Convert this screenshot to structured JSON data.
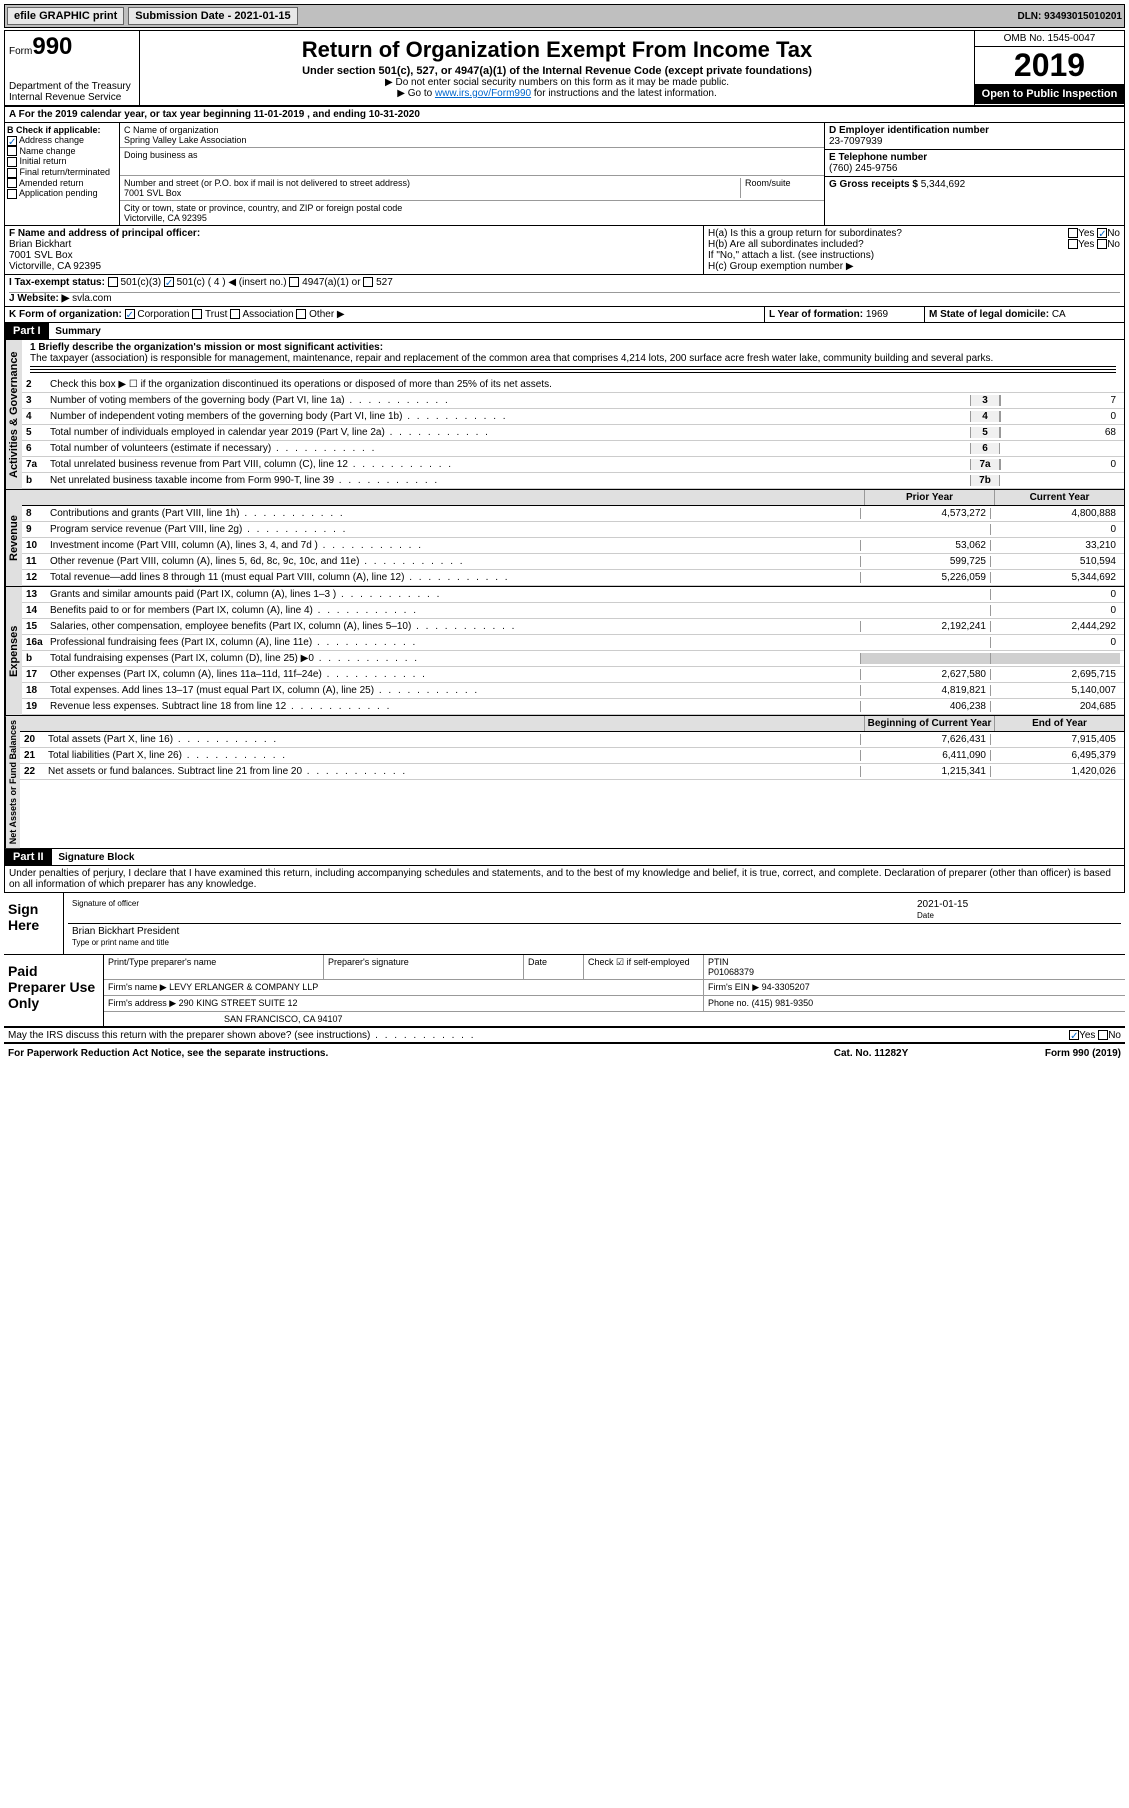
{
  "topbar": {
    "efile": "efile GRAPHIC print",
    "submission_label": "Submission Date - 2021-01-15",
    "dln": "DLN: 93493015010201"
  },
  "header": {
    "form_label": "Form",
    "form_number": "990",
    "dept": "Department of the Treasury",
    "irs": "Internal Revenue Service",
    "title": "Return of Organization Exempt From Income Tax",
    "subtitle": "Under section 501(c), 527, or 4947(a)(1) of the Internal Revenue Code (except private foundations)",
    "note1": "▶ Do not enter social security numbers on this form as it may be made public.",
    "note2_pre": "▶ Go to ",
    "note2_link": "www.irs.gov/Form990",
    "note2_post": " for instructions and the latest information.",
    "omb": "OMB No. 1545-0047",
    "year": "2019",
    "open": "Open to Public Inspection"
  },
  "line_a": "A For the 2019 calendar year, or tax year beginning 11-01-2019   , and ending 10-31-2020",
  "section_b": {
    "label": "B Check if applicable:",
    "items": [
      "Address change",
      "Name change",
      "Initial return",
      "Final return/terminated",
      "Amended return",
      "Application pending"
    ],
    "checked_idx": 0
  },
  "section_c": {
    "name_label": "C Name of organization",
    "name": "Spring Valley Lake Association",
    "dba_label": "Doing business as",
    "addr_label": "Number and street (or P.O. box if mail is not delivered to street address)",
    "room_label": "Room/suite",
    "addr": "7001 SVL Box",
    "city_label": "City or town, state or province, country, and ZIP or foreign postal code",
    "city": "Victorville, CA  92395"
  },
  "section_d": {
    "label": "D Employer identification number",
    "value": "23-7097939"
  },
  "section_e": {
    "label": "E Telephone number",
    "value": "(760) 245-9756"
  },
  "section_g": {
    "label": "G Gross receipts $",
    "value": "5,344,692"
  },
  "section_f": {
    "label": "F  Name and address of principal officer:",
    "name": "Brian Bickhart",
    "addr1": "7001 SVL Box",
    "addr2": "Victorville, CA  92395"
  },
  "section_h": {
    "a": "H(a)  Is this a group return for subordinates?",
    "a_yes": "Yes",
    "a_no": "No",
    "b": "H(b)  Are all subordinates included?",
    "b_yes": "Yes",
    "b_no": "No",
    "b_note": "If \"No,\" attach a list. (see instructions)",
    "c": "H(c)  Group exemption number ▶"
  },
  "section_i": {
    "label": "I  Tax-exempt status:",
    "opts": [
      "501(c)(3)",
      "501(c) ( 4 ) ◀ (insert no.)",
      "4947(a)(1) or",
      "527"
    ],
    "checked_idx": 1
  },
  "section_j": {
    "label": "J  Website: ▶",
    "value": "svla.com"
  },
  "section_k": {
    "label": "K Form of organization:",
    "opts": [
      "Corporation",
      "Trust",
      "Association",
      "Other ▶"
    ],
    "checked_idx": 0
  },
  "section_l": {
    "label": "L Year of formation:",
    "value": "1969"
  },
  "section_m": {
    "label": "M State of legal domicile:",
    "value": "CA"
  },
  "part1": {
    "header": "Part I",
    "title": "Summary",
    "tabs": [
      "Activities & Governance",
      "Revenue",
      "Expenses",
      "Net Assets or Fund Balances"
    ],
    "line1_label": "1  Briefly describe the organization's mission or most significant activities:",
    "line1_text": "The taxpayer (association) is responsible for management, maintenance, repair and replacement of the common area that comprises 4,214 lots, 200 surface acre fresh water lake, community building and several parks.",
    "line2": "Check this box ▶ ☐  if the organization discontinued its operations or disposed of more than 25% of its net assets.",
    "governance_lines": [
      {
        "n": "3",
        "d": "Number of voting members of the governing body (Part VI, line 1a)",
        "box": "3",
        "v": "7"
      },
      {
        "n": "4",
        "d": "Number of independent voting members of the governing body (Part VI, line 1b)",
        "box": "4",
        "v": "0"
      },
      {
        "n": "5",
        "d": "Total number of individuals employed in calendar year 2019 (Part V, line 2a)",
        "box": "5",
        "v": "68"
      },
      {
        "n": "6",
        "d": "Total number of volunteers (estimate if necessary)",
        "box": "6",
        "v": ""
      },
      {
        "n": "7a",
        "d": "Total unrelated business revenue from Part VIII, column (C), line 12",
        "box": "7a",
        "v": "0"
      },
      {
        "n": "b",
        "d": "Net unrelated business taxable income from Form 990-T, line 39",
        "box": "7b",
        "v": ""
      }
    ],
    "col_prior": "Prior Year",
    "col_current": "Current Year",
    "revenue_lines": [
      {
        "n": "8",
        "d": "Contributions and grants (Part VIII, line 1h)",
        "p": "4,573,272",
        "c": "4,800,888"
      },
      {
        "n": "9",
        "d": "Program service revenue (Part VIII, line 2g)",
        "p": "",
        "c": "0"
      },
      {
        "n": "10",
        "d": "Investment income (Part VIII, column (A), lines 3, 4, and 7d )",
        "p": "53,062",
        "c": "33,210"
      },
      {
        "n": "11",
        "d": "Other revenue (Part VIII, column (A), lines 5, 6d, 8c, 9c, 10c, and 11e)",
        "p": "599,725",
        "c": "510,594"
      },
      {
        "n": "12",
        "d": "Total revenue—add lines 8 through 11 (must equal Part VIII, column (A), line 12)",
        "p": "5,226,059",
        "c": "5,344,692"
      }
    ],
    "expense_lines": [
      {
        "n": "13",
        "d": "Grants and similar amounts paid (Part IX, column (A), lines 1–3 )",
        "p": "",
        "c": "0"
      },
      {
        "n": "14",
        "d": "Benefits paid to or for members (Part IX, column (A), line 4)",
        "p": "",
        "c": "0"
      },
      {
        "n": "15",
        "d": "Salaries, other compensation, employee benefits (Part IX, column (A), lines 5–10)",
        "p": "2,192,241",
        "c": "2,444,292"
      },
      {
        "n": "16a",
        "d": "Professional fundraising fees (Part IX, column (A), line 11e)",
        "p": "",
        "c": "0"
      },
      {
        "n": "b",
        "d": "Total fundraising expenses (Part IX, column (D), line 25) ▶0",
        "p": "gray",
        "c": "gray"
      },
      {
        "n": "17",
        "d": "Other expenses (Part IX, column (A), lines 11a–11d, 11f–24e)",
        "p": "2,627,580",
        "c": "2,695,715"
      },
      {
        "n": "18",
        "d": "Total expenses. Add lines 13–17 (must equal Part IX, column (A), line 25)",
        "p": "4,819,821",
        "c": "5,140,007"
      },
      {
        "n": "19",
        "d": "Revenue less expenses. Subtract line 18 from line 12",
        "p": "406,238",
        "c": "204,685"
      }
    ],
    "col_begin": "Beginning of Current Year",
    "col_end": "End of Year",
    "net_lines": [
      {
        "n": "20",
        "d": "Total assets (Part X, line 16)",
        "p": "7,626,431",
        "c": "7,915,405"
      },
      {
        "n": "21",
        "d": "Total liabilities (Part X, line 26)",
        "p": "6,411,090",
        "c": "6,495,379"
      },
      {
        "n": "22",
        "d": "Net assets or fund balances. Subtract line 21 from line 20",
        "p": "1,215,341",
        "c": "1,420,026"
      }
    ]
  },
  "part2": {
    "header": "Part II",
    "title": "Signature Block",
    "decl": "Under penalties of perjury, I declare that I have examined this return, including accompanying schedules and statements, and to the best of my knowledge and belief, it is true, correct, and complete. Declaration of preparer (other than officer) is based on all information of which preparer has any knowledge."
  },
  "sign": {
    "label": "Sign Here",
    "sig_label": "Signature of officer",
    "date_label": "Date",
    "date": "2021-01-15",
    "name": "Brian Bickhart President",
    "name_label": "Type or print name and title"
  },
  "preparer": {
    "label": "Paid Preparer Use Only",
    "h_name": "Print/Type preparer's name",
    "h_sig": "Preparer's signature",
    "h_date": "Date",
    "h_check": "Check ☑ if self-employed",
    "h_ptin": "PTIN",
    "ptin": "P01068379",
    "firm_label": "Firm's name   ▶",
    "firm": "LEVY ERLANGER & COMPANY LLP",
    "ein_label": "Firm's EIN ▶",
    "ein": "94-3305207",
    "addr_label": "Firm's address ▶",
    "addr1": "290 KING STREET SUITE 12",
    "addr2": "SAN FRANCISCO, CA  94107",
    "phone_label": "Phone no.",
    "phone": "(415) 981-9350"
  },
  "discuss": {
    "text": "May the IRS discuss this return with the preparer shown above? (see instructions)",
    "yes": "Yes",
    "no": "No"
  },
  "footer": {
    "left": "For Paperwork Reduction Act Notice, see the separate instructions.",
    "mid": "Cat. No. 11282Y",
    "right": "Form 990 (2019)"
  }
}
